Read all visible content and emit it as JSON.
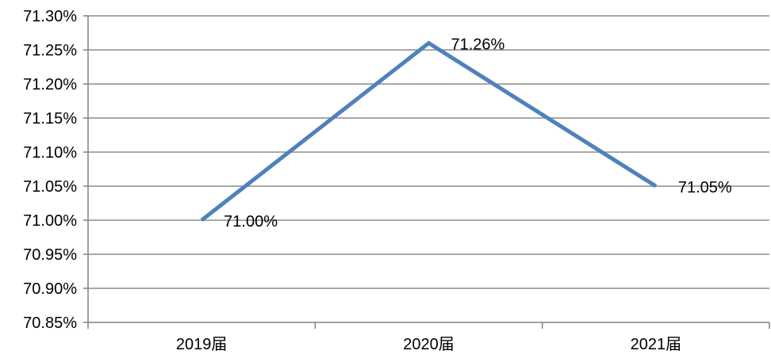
{
  "chart_data": {
    "type": "line",
    "categories": [
      "2019届",
      "2020届",
      "2021届"
    ],
    "series": [
      {
        "values": [
          71.0,
          71.26,
          71.05
        ],
        "data_labels": [
          "71.00%",
          "71.26%",
          "71.05%"
        ],
        "color": "#4f81bd"
      }
    ],
    "y_ticks": [
      {
        "value": 70.85,
        "label": "70.85%"
      },
      {
        "value": 70.9,
        "label": "70.90%"
      },
      {
        "value": 70.95,
        "label": "70.95%"
      },
      {
        "value": 71.0,
        "label": "71.00%"
      },
      {
        "value": 71.05,
        "label": "71.05%"
      },
      {
        "value": 71.1,
        "label": "71.10%"
      },
      {
        "value": 71.15,
        "label": "71.15%"
      },
      {
        "value": 71.2,
        "label": "71.20%"
      },
      {
        "value": 71.25,
        "label": "71.25%"
      },
      {
        "value": 71.3,
        "label": "71.30%"
      }
    ],
    "ylim": [
      70.85,
      71.3
    ],
    "grid": true,
    "legend": "none",
    "gridline_color": "#8c8c8c",
    "axis_color": "#808080"
  }
}
